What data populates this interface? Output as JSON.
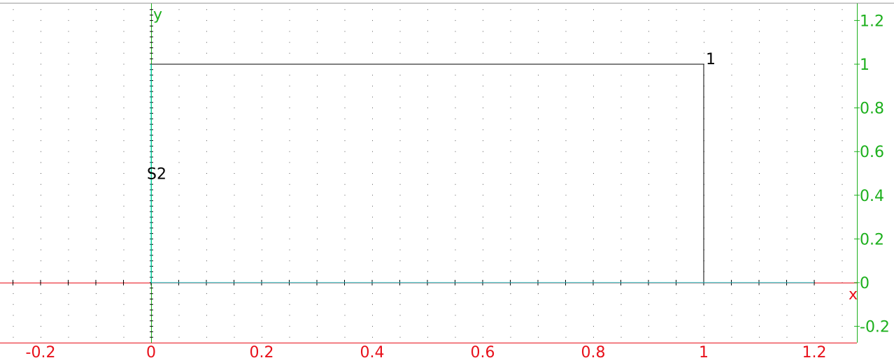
{
  "chart_data": {
    "type": "line",
    "title": "",
    "xlabel": "x",
    "ylabel": "y",
    "xlim": [
      -0.27,
      1.27
    ],
    "ylim": [
      -0.27,
      1.27
    ],
    "grid": true,
    "x_ticks": [
      -0.2,
      0,
      0.2,
      0.4,
      0.6,
      0.8,
      1,
      1.2
    ],
    "y_ticks": [
      -0.2,
      0,
      0.2,
      0.4,
      0.6,
      0.8,
      1,
      1.2
    ],
    "x_tick_labels": [
      "-0.2",
      "0",
      "0.2",
      "0.4",
      "0.6",
      "0.8",
      "1",
      "1.2"
    ],
    "y_tick_labels": [
      "-0.2",
      "0",
      "0.2",
      "0.4",
      "0.6",
      "0.8",
      "1",
      "1.2"
    ],
    "series": [
      {
        "color": "#000000",
        "points": [
          [
            0,
            1
          ],
          [
            1,
            1
          ],
          [
            1,
            0
          ]
        ]
      },
      {
        "color": "#00e5e5",
        "points": [
          [
            0,
            0
          ],
          [
            1.2,
            0
          ]
        ]
      },
      {
        "color": "#00e5e5",
        "points": [
          [
            0,
            0
          ],
          [
            0,
            1
          ]
        ]
      }
    ],
    "annotations": [
      {
        "text": "1",
        "x": 1,
        "y": 1
      },
      {
        "text": "S2",
        "x": 0,
        "y": 0.5
      }
    ],
    "colors": {
      "x_axis": "#e8101a",
      "y_axis": "#1db01d",
      "grid_dots": "#555555"
    }
  }
}
